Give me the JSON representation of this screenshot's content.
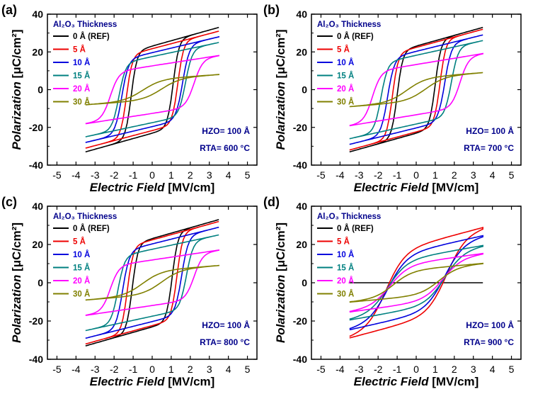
{
  "figure": {
    "background": "#ffffff",
    "axis_color": "#000000",
    "legend_title_color": "#00008b",
    "annotation_color": "#00008b"
  },
  "chart_data": [
    {
      "type": "line",
      "panel_label": "(a)",
      "xlabel_italic": "Electric Field",
      "xlabel_unit": "[MV/cm]",
      "ylabel_italic": "Polarization",
      "ylabel_unit": "[μC/cm²]",
      "xlim": [
        -5.5,
        5.5
      ],
      "ylim": [
        -40,
        40
      ],
      "xticks": [
        -5,
        -4,
        -3,
        -2,
        -1,
        0,
        1,
        2,
        3,
        4,
        5
      ],
      "yticks": [
        -40,
        -20,
        0,
        20,
        40
      ],
      "legend_title": "Al₂O₃ Thickness",
      "annotations": [
        "HZO= 100 Å",
        "RTA= 600 °C"
      ],
      "series": [
        {
          "name": "0 Å (REF)",
          "color": "#000000",
          "loop": {
            "Pmax": 33,
            "Pr": 15,
            "Ec": 1.1,
            "w": 0.3
          }
        },
        {
          "name": "5 Å",
          "color": "#ee0000",
          "loop": {
            "Pmax": 31,
            "Pr": 16,
            "Ec": 1.35,
            "w": 0.3
          }
        },
        {
          "name": "10 Å",
          "color": "#0000dd",
          "loop": {
            "Pmax": 28,
            "Pr": 14,
            "Ec": 1.6,
            "w": 0.35
          }
        },
        {
          "name": "15 Å",
          "color": "#008080",
          "loop": {
            "Pmax": 25,
            "Pr": 11,
            "Ec": 1.75,
            "w": 0.35
          }
        },
        {
          "name": "20 Å",
          "color": "#ff00ff",
          "loop": {
            "Pmax": 18,
            "Pr": 7,
            "Ec": 2.2,
            "w": 0.45
          }
        },
        {
          "name": "30 Å",
          "color": "#808000",
          "loop": {
            "Pmax": 8,
            "Pr": 1,
            "Ec": 0.5,
            "w": 1.0
          }
        }
      ]
    },
    {
      "type": "line",
      "panel_label": "(b)",
      "xlabel_italic": "Electric Field",
      "xlabel_unit": "[MV/cm]",
      "ylabel_italic": "Polarization",
      "ylabel_unit": "[μC/cm²]",
      "xlim": [
        -5.5,
        5.5
      ],
      "ylim": [
        -40,
        40
      ],
      "xticks": [
        -5,
        -4,
        -3,
        -2,
        -1,
        0,
        1,
        2,
        3,
        4,
        5
      ],
      "yticks": [
        -40,
        -20,
        0,
        20,
        40
      ],
      "legend_title": "Al₂O₃ Thickness",
      "annotations": [
        "HZO= 100 Å",
        "RTA= 700 °C"
      ],
      "series": [
        {
          "name": "0 Å (REF)",
          "color": "#000000",
          "loop": {
            "Pmax": 33,
            "Pr": 17,
            "Ec": 1.0,
            "w": 0.3
          }
        },
        {
          "name": "5 Å",
          "color": "#ee0000",
          "loop": {
            "Pmax": 32,
            "Pr": 16,
            "Ec": 1.25,
            "w": 0.3
          }
        },
        {
          "name": "10 Å",
          "color": "#0000dd",
          "loop": {
            "Pmax": 29,
            "Pr": 15,
            "Ec": 1.5,
            "w": 0.35
          }
        },
        {
          "name": "15 Å",
          "color": "#008080",
          "loop": {
            "Pmax": 26,
            "Pr": 12,
            "Ec": 1.85,
            "w": 0.35
          }
        },
        {
          "name": "20 Å",
          "color": "#ff00ff",
          "loop": {
            "Pmax": 19,
            "Pr": 7,
            "Ec": 2.3,
            "w": 0.45
          }
        },
        {
          "name": "30 Å",
          "color": "#808000",
          "loop": {
            "Pmax": 9,
            "Pr": 1,
            "Ec": 0.5,
            "w": 1.0
          }
        }
      ]
    },
    {
      "type": "line",
      "panel_label": "(c)",
      "xlabel_italic": "Electric Field",
      "xlabel_unit": "[MV/cm]",
      "ylabel_italic": "Polarization",
      "ylabel_unit": "[μC/cm²]",
      "xlim": [
        -5.5,
        5.5
      ],
      "ylim": [
        -40,
        40
      ],
      "xticks": [
        -5,
        -4,
        -3,
        -2,
        -1,
        0,
        1,
        2,
        3,
        4,
        5
      ],
      "yticks": [
        -40,
        -20,
        0,
        20,
        40
      ],
      "legend_title": "Al₂O₃ Thickness",
      "annotations": [
        "HZO= 100 Å",
        "RTA= 800 °C"
      ],
      "series": [
        {
          "name": "0 Å (REF)",
          "color": "#000000",
          "loop": {
            "Pmax": 33,
            "Pr": 17,
            "Ec": 1.05,
            "w": 0.3
          }
        },
        {
          "name": "5 Å",
          "color": "#ee0000",
          "loop": {
            "Pmax": 32,
            "Pr": 18,
            "Ec": 1.3,
            "w": 0.3
          }
        },
        {
          "name": "10 Å",
          "color": "#0000dd",
          "loop": {
            "Pmax": 29,
            "Pr": 15,
            "Ec": 1.55,
            "w": 0.35
          }
        },
        {
          "name": "15 Å",
          "color": "#008080",
          "loop": {
            "Pmax": 25,
            "Pr": 12,
            "Ec": 1.8,
            "w": 0.35
          }
        },
        {
          "name": "20 Å",
          "color": "#ff00ff",
          "loop": {
            "Pmax": 17,
            "Pr": 6,
            "Ec": 2.2,
            "w": 0.45
          }
        },
        {
          "name": "30 Å",
          "color": "#808000",
          "loop": {
            "Pmax": 9,
            "Pr": 1,
            "Ec": 0.5,
            "w": 1.0
          }
        }
      ]
    },
    {
      "type": "line",
      "panel_label": "(d)",
      "xlabel_italic": "Electric Field",
      "xlabel_unit": "[MV/cm]",
      "ylabel_italic": "Polarization",
      "ylabel_unit": "[μC/cm²]",
      "xlim": [
        -5.5,
        5.5
      ],
      "ylim": [
        -40,
        40
      ],
      "xticks": [
        -5,
        -4,
        -3,
        -2,
        -1,
        0,
        1,
        2,
        3,
        4,
        5
      ],
      "yticks": [
        -40,
        -20,
        0,
        20,
        40
      ],
      "legend_title": "Al₂O₃ Thickness",
      "annotations": [
        "HZO= 100 Å",
        "RTA= 900 °C"
      ],
      "series": [
        {
          "name": "0 Å (REF)",
          "color": "#000000",
          "loop": {
            "Pmax": 0,
            "Pr": 0,
            "Ec": 0.5,
            "w": 1.0
          }
        },
        {
          "name": "5 Å",
          "color": "#ee0000",
          "loop": {
            "Pmax": 28,
            "Pr": 15,
            "Ec": 1.6,
            "w": 1.0
          }
        },
        {
          "name": "10 Å",
          "color": "#0000dd",
          "loop": {
            "Pmax": 24,
            "Pr": 13,
            "Ec": 1.5,
            "w": 1.0
          }
        },
        {
          "name": "15 Å",
          "color": "#008080",
          "loop": {
            "Pmax": 19,
            "Pr": 10,
            "Ec": 1.5,
            "w": 1.0
          }
        },
        {
          "name": "20 Å",
          "color": "#ff00ff",
          "loop": {
            "Pmax": 15,
            "Pr": 7,
            "Ec": 1.4,
            "w": 1.0
          }
        },
        {
          "name": "30 Å",
          "color": "#808000",
          "loop": {
            "Pmax": 10,
            "Pr": 3,
            "Ec": 1.2,
            "w": 1.0
          }
        }
      ]
    }
  ]
}
